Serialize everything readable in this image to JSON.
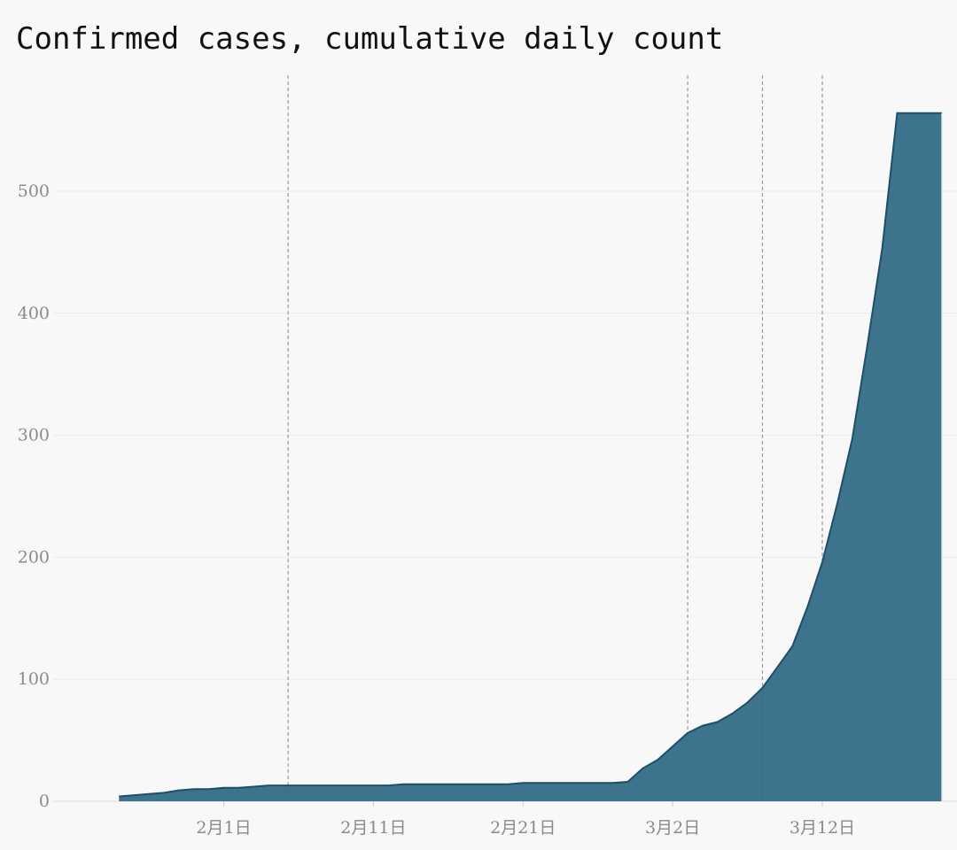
{
  "chart_data": {
    "type": "area",
    "title": "Confirmed cases, cumulative daily count",
    "xlabel": "",
    "ylabel": "",
    "x_start": "1月24日",
    "x_tick_labels": [
      "2月1日",
      "2月11日",
      "2月21日",
      "3月2日",
      "3月12日"
    ],
    "x_tick_days": [
      8,
      18,
      28,
      38,
      48
    ],
    "y_ticks": [
      0,
      100,
      200,
      300,
      400,
      500
    ],
    "ylim": [
      0,
      570
    ],
    "xlim_days": [
      -3.4,
      57
    ],
    "grid": "horizontal",
    "event_lines_days": [
      12.3,
      39.0,
      44.0,
      48.0
    ],
    "series": [
      {
        "x_days": [
          1,
          2,
          3,
          4,
          5,
          6,
          7,
          8,
          9,
          10,
          11,
          12,
          13,
          14,
          15,
          16,
          17,
          18,
          19,
          20,
          21,
          22,
          23,
          24,
          25,
          26,
          27,
          28,
          29,
          30,
          31,
          32,
          33,
          34,
          35,
          36,
          37,
          38,
          39,
          40,
          41,
          42,
          43,
          44,
          45,
          46,
          47,
          48,
          49,
          50,
          51,
          52,
          53,
          54,
          55,
          56
        ],
        "values": [
          4,
          5,
          6,
          7,
          9,
          10,
          10,
          11,
          11,
          12,
          13,
          13,
          13,
          13,
          13,
          13,
          13,
          13,
          13,
          14,
          14,
          14,
          14,
          14,
          14,
          14,
          14,
          15,
          15,
          15,
          15,
          15,
          15,
          15,
          16,
          27,
          34,
          45,
          56,
          62,
          65,
          72,
          81,
          93,
          110,
          127,
          159,
          196,
          244,
          297,
          373,
          453,
          564,
          564,
          564,
          564
        ],
        "color": "#2e6784"
      }
    ]
  }
}
